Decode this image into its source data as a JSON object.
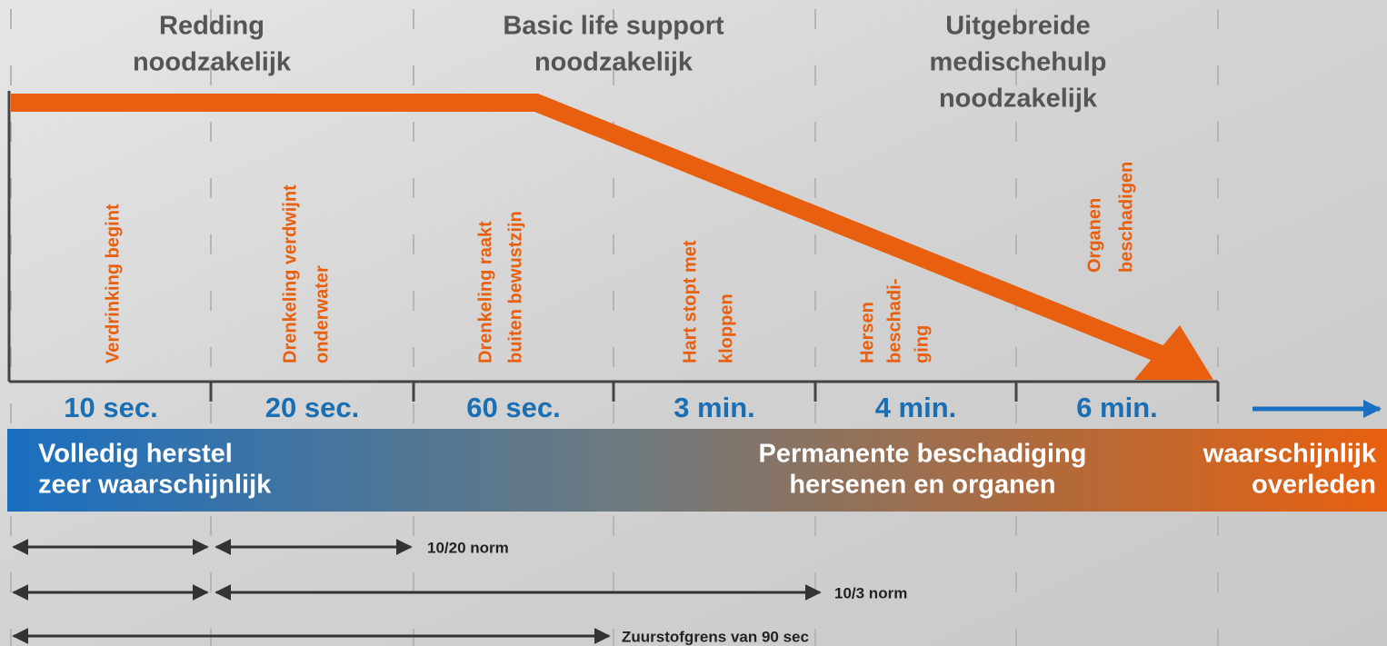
{
  "phases": [
    {
      "lines": [
        "Redding",
        "noodzakelijk"
      ]
    },
    {
      "lines": [
        "Basic life support",
        "noodzakelijk"
      ]
    },
    {
      "lines": [
        "Uitgebreide",
        "medischehulp",
        "noodzakelijk"
      ]
    }
  ],
  "events": [
    {
      "lines": [
        "Verdrinking begint"
      ]
    },
    {
      "lines": [
        "Drenkeling verdwijnt",
        "onderwater"
      ]
    },
    {
      "lines": [
        "Drenkeling raakt",
        "buiten bewustzijn"
      ]
    },
    {
      "lines": [
        "Hart stopt met",
        "kloppen"
      ]
    },
    {
      "lines": [
        "Hersen",
        "beschadi-",
        "ging"
      ]
    },
    {
      "lines": [
        "Organen",
        "beschadigen"
      ]
    }
  ],
  "times": [
    "10 sec.",
    "20 sec.",
    "60 sec.",
    "3 min.",
    "4 min.",
    "6 min."
  ],
  "outcomes": [
    {
      "lines": [
        "Volledig herstel",
        "zeer waarschijnlijk"
      ]
    },
    {
      "lines": [
        "Permanente beschadiging",
        "hersenen en organen"
      ]
    },
    {
      "lines": [
        "waarschijnlijk",
        "overleden"
      ]
    }
  ],
  "norms": [
    {
      "label": "10/20 norm"
    },
    {
      "label": "10/3 norm"
    },
    {
      "label": "Zuurstofgrens van 90 sec"
    }
  ]
}
